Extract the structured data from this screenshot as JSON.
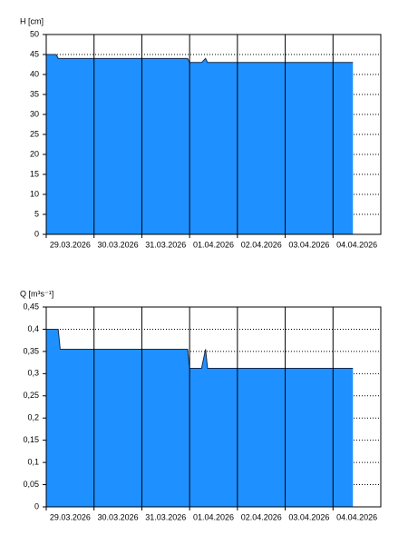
{
  "chart_data": [
    {
      "type": "area",
      "y_label": "H [cm]",
      "color": "#1e90ff",
      "line_color": "#1a2a4a",
      "x": [
        "2026-03-29T00:00",
        "2026-03-29T05:00",
        "2026-03-29T06:00",
        "2026-03-31T23:00",
        "2026-04-01T00:00",
        "2026-04-01T06:00",
        "2026-04-01T08:00",
        "2026-04-01T09:00",
        "2026-04-04T10:00"
      ],
      "values": [
        45,
        45,
        44,
        44,
        43,
        43,
        44,
        43,
        43
      ],
      "xlim": [
        "2026-03-29T00:00",
        "2026-04-05T00:00"
      ],
      "xticks": [
        {
          "value": "2026-03-29T00:00",
          "label": "29.03.2026"
        },
        {
          "value": "2026-03-30T00:00",
          "label": "30.03.2026"
        },
        {
          "value": "2026-03-31T00:00",
          "label": "31.03.2026"
        },
        {
          "value": "2026-04-01T00:00",
          "label": "01.04.2026"
        },
        {
          "value": "2026-04-02T00:00",
          "label": "02.04.2026"
        },
        {
          "value": "2026-04-03T00:00",
          "label": "03.04.2026"
        },
        {
          "value": "2026-04-04T00:00",
          "label": "04.04.2026"
        }
      ],
      "ylim": [
        0,
        50
      ],
      "yticks": [
        0,
        5,
        10,
        15,
        20,
        25,
        30,
        35,
        40,
        45,
        50
      ],
      "grid": true
    },
    {
      "type": "area",
      "y_label": "Q [m³s⁻¹]",
      "color": "#1e90ff",
      "line_color": "#1a2a4a",
      "x": [
        "2026-03-29T00:00",
        "2026-03-29T06:00",
        "2026-03-29T07:00",
        "2026-03-31T23:00",
        "2026-04-01T00:00",
        "2026-04-01T06:00",
        "2026-04-01T08:00",
        "2026-04-01T09:00",
        "2026-04-04T10:00"
      ],
      "values": [
        0.4,
        0.4,
        0.355,
        0.355,
        0.312,
        0.312,
        0.355,
        0.312,
        0.312
      ],
      "xlim": [
        "2026-03-29T00:00",
        "2026-04-05T00:00"
      ],
      "xticks": [
        {
          "value": "2026-03-29T00:00",
          "label": "29.03.2026"
        },
        {
          "value": "2026-03-30T00:00",
          "label": "30.03.2026"
        },
        {
          "value": "2026-03-31T00:00",
          "label": "31.03.2026"
        },
        {
          "value": "2026-04-01T00:00",
          "label": "01.04.2026"
        },
        {
          "value": "2026-04-02T00:00",
          "label": "02.04.2026"
        },
        {
          "value": "2026-04-03T00:00",
          "label": "03.04.2026"
        },
        {
          "value": "2026-04-04T00:00",
          "label": "04.04.2026"
        }
      ],
      "ylim": [
        0,
        0.45
      ],
      "yticks": [
        0,
        {
          "value": 0.05,
          "label": "0,05"
        },
        {
          "value": 0.1,
          "label": "0,1"
        },
        {
          "value": 0.15,
          "label": "0,15"
        },
        {
          "value": 0.2,
          "label": "0,2"
        },
        {
          "value": 0.25,
          "label": "0,25"
        },
        {
          "value": 0.3,
          "label": "0,3"
        },
        {
          "value": 0.35,
          "label": "0,35"
        },
        {
          "value": 0.4,
          "label": "0,4"
        },
        {
          "value": 0.45,
          "label": "0,45"
        }
      ],
      "grid": true
    }
  ]
}
